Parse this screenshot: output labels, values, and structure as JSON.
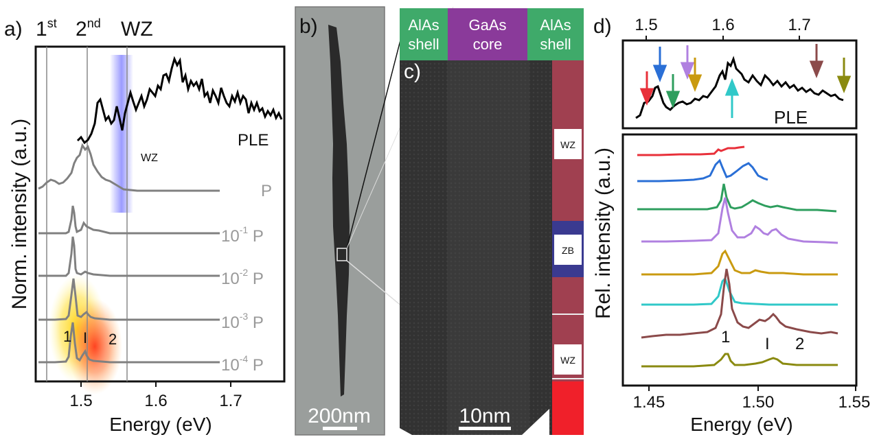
{
  "panels": {
    "a": {
      "label": "a)",
      "markers": {
        "first": "1",
        "first_sup": "st",
        "second": "2",
        "second_sup": "nd",
        "wz": "WZ"
      },
      "ple_label": "PLE",
      "wz_band_label": "WZ",
      "ylabel": "Norm. intensity (a.u.)",
      "xlabel": "Energy (eV)",
      "xticks": [
        "1.5",
        "1.6",
        "1.7"
      ],
      "trace_labels": [
        {
          "base": "P",
          "exp": ""
        },
        {
          "base": "10",
          "exp": "-1",
          "suffix": " P"
        },
        {
          "base": "10",
          "exp": "-2",
          "suffix": " P"
        },
        {
          "base": "10",
          "exp": "-3",
          "suffix": " P"
        },
        {
          "base": "10",
          "exp": "-4",
          "suffix": " P"
        }
      ],
      "peak_labels": {
        "p1": "1",
        "pI": "I",
        "p2": "2"
      }
    },
    "b": {
      "label": "b)",
      "scalebar": "200nm"
    },
    "c": {
      "label": "c)",
      "scalebar": "10nm",
      "header": [
        "AlAs shell",
        "GaAs core",
        "AlAs shell"
      ],
      "header_lines": [
        [
          "AlAs",
          "shell"
        ],
        [
          "GaAs",
          "core"
        ],
        [
          "AlAs",
          "shell"
        ]
      ],
      "phase_labels": [
        "WZ",
        "ZB",
        "WZ"
      ]
    },
    "d": {
      "label": "d)",
      "top_xticks": [
        "1.5",
        "1.6",
        "1.7"
      ],
      "ple_label": "PLE",
      "ylabel": "Rel. intensity (a.u.)",
      "xlabel": "Energy (eV)",
      "xticks": [
        "1.45",
        "1.50",
        "1.55"
      ],
      "peak_labels": {
        "p1": "1",
        "pI": "I",
        "p2": "2"
      },
      "series_colors": [
        "#e8303a",
        "#2a6fd6",
        "#2e9e5e",
        "#b080e0",
        "#c99a10",
        "#30c8c8",
        "#8b4a4a",
        "#8a8a10"
      ]
    }
  },
  "colors": {
    "trace_gray": "#808080",
    "ple_black": "#000000",
    "wz_band": "#8a8aff",
    "header_green": "#3faa6a",
    "header_purple": "#8a3a9a",
    "stripe_red": "#a04050",
    "stripe_blue": "#3a3a90"
  }
}
